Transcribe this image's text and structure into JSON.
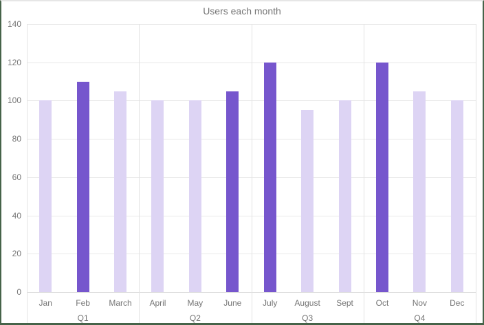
{
  "chart_data": {
    "type": "bar",
    "title": "Users each month",
    "categories": [
      "Jan",
      "Feb",
      "March",
      "April",
      "May",
      "June",
      "July",
      "August",
      "Sept",
      "Oct",
      "Nov",
      "Dec"
    ],
    "values": [
      100,
      110,
      105,
      100,
      100,
      105,
      120,
      95,
      100,
      120,
      105,
      100
    ],
    "highlighted_categories": [
      "Feb",
      "June",
      "July",
      "Oct"
    ],
    "group_labels": [
      "Q1",
      "Q2",
      "Q3",
      "Q4"
    ],
    "months_per_group": 3,
    "xlabel": "",
    "ylabel": "",
    "ylim": [
      0,
      140
    ],
    "yticks": [
      0,
      20,
      40,
      60,
      80,
      100,
      120,
      140
    ],
    "grid": true,
    "legend": "none",
    "colors": {
      "bar": "#ddd4f4",
      "bar_highlight": "#7656cd",
      "frame_border": "#466349",
      "gridline": "#e8e8e8",
      "text": "#757575"
    }
  }
}
